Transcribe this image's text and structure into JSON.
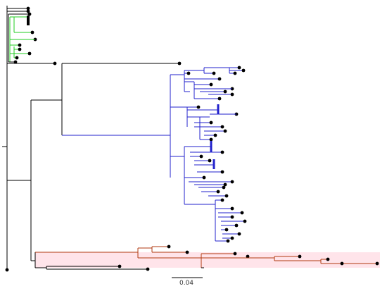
{
  "figure": {
    "type": "phylogenetic-tree",
    "scale_bar_label": "0.04",
    "clade_colors": {
      "base": "#000000",
      "green_clade": "#22cc22",
      "blue_clade": "#2222cc",
      "red_clade": "#b03a10",
      "red_highlight": "#ffe4ea"
    }
  }
}
